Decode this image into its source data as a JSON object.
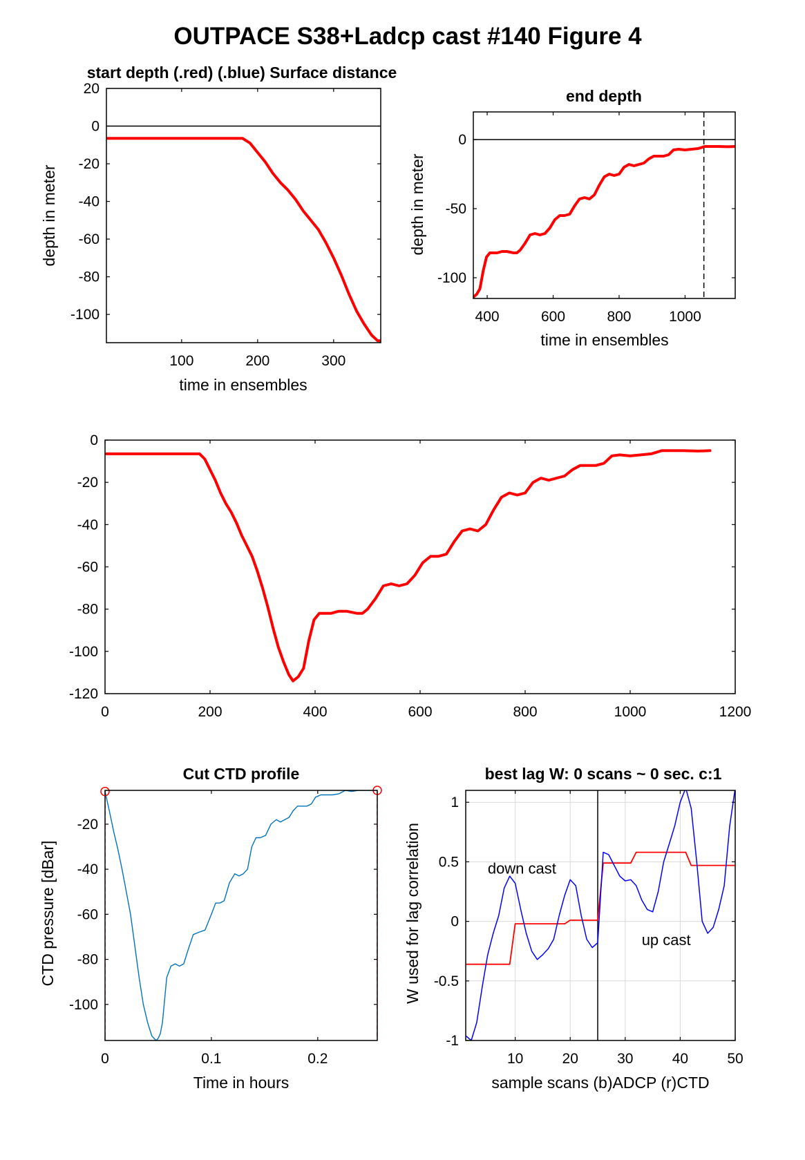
{
  "figure_title": "OUTPACE S38+Ladcp cast #140   Figure 4",
  "chart_data": [
    {
      "id": "start",
      "type": "line",
      "title": "start depth (.red) (.blue) Surface distance",
      "xlabel": "time in ensembles",
      "ylabel": "depth in meter",
      "xlim": [
        1,
        362
      ],
      "ylim": [
        -115,
        20
      ],
      "xticks": [
        100,
        200,
        300
      ],
      "yticks": [
        20,
        0,
        -20,
        -40,
        -60,
        -80,
        -100
      ],
      "grid": false,
      "hlines": [
        0
      ],
      "series": [
        {
          "color": "#ff0000",
          "x": [
            1,
            50,
            100,
            150,
            180,
            190,
            200,
            210,
            220,
            230,
            240,
            250,
            260,
            270,
            280,
            290,
            300,
            310,
            320,
            330,
            340,
            350,
            358,
            362
          ],
          "y": [
            -6.5,
            -6.5,
            -6.5,
            -6.5,
            -6.5,
            -9,
            -14,
            -19,
            -25,
            -30,
            -34,
            -39,
            -45,
            -50,
            -55,
            -62,
            -70,
            -79,
            -89,
            -98,
            -105,
            -111,
            -114,
            -114
          ]
        }
      ]
    },
    {
      "id": "end",
      "type": "line",
      "title": "end depth",
      "xlabel": "time in ensembles",
      "ylabel": "depth in meter",
      "xlim": [
        358,
        1152
      ],
      "ylim": [
        -115,
        20
      ],
      "xticks": [
        400,
        600,
        800,
        1000
      ],
      "yticks": [
        0,
        -50,
        -100
      ],
      "grid": false,
      "hlines": [
        0
      ],
      "vlines": [
        1057
      ],
      "series": [
        {
          "color": "#ff0000",
          "x": [
            358,
            368,
            378,
            388,
            398,
            408,
            418,
            430,
            445,
            460,
            480,
            490,
            500,
            515,
            530,
            545,
            560,
            575,
            590,
            605,
            620,
            635,
            650,
            665,
            680,
            695,
            710,
            725,
            740,
            755,
            770,
            785,
            800,
            815,
            830,
            845,
            860,
            875,
            890,
            905,
            920,
            935,
            950,
            965,
            980,
            1000,
            1020,
            1040,
            1060,
            1080,
            1100,
            1130,
            1152
          ],
          "y": [
            -114,
            -112,
            -108,
            -95,
            -85,
            -82,
            -82,
            -82,
            -81,
            -81,
            -82,
            -82,
            -80,
            -75,
            -69,
            -68,
            -69,
            -68,
            -64,
            -58,
            -55,
            -55,
            -54,
            -48,
            -43,
            -42,
            -43,
            -40,
            -33,
            -27,
            -25,
            -26,
            -25,
            -20,
            -18,
            -19,
            -18,
            -17,
            -14,
            -12,
            -12,
            -12,
            -11,
            -7.5,
            -7,
            -7.5,
            -7,
            -6.5,
            -5,
            -5,
            -5,
            -5.2,
            -5
          ]
        }
      ]
    },
    {
      "id": "full",
      "type": "line",
      "title": "",
      "xlabel": "",
      "ylabel": "",
      "xlim": [
        0,
        1200
      ],
      "ylim": [
        -120,
        0
      ],
      "xticks": [
        0,
        200,
        400,
        600,
        800,
        1000,
        1200
      ],
      "yticks": [
        0,
        -20,
        -40,
        -60,
        -80,
        -100,
        -120
      ],
      "grid": false,
      "series": [
        {
          "color": "#ff0000",
          "x": [
            1,
            50,
            100,
            150,
            180,
            190,
            200,
            210,
            220,
            230,
            240,
            250,
            260,
            270,
            280,
            290,
            300,
            310,
            320,
            330,
            340,
            350,
            358,
            368,
            378,
            388,
            398,
            408,
            418,
            430,
            445,
            460,
            480,
            490,
            500,
            515,
            530,
            545,
            560,
            575,
            590,
            605,
            620,
            635,
            650,
            665,
            680,
            695,
            710,
            725,
            740,
            755,
            770,
            785,
            800,
            815,
            830,
            845,
            860,
            875,
            890,
            905,
            920,
            935,
            950,
            965,
            980,
            1000,
            1020,
            1040,
            1060,
            1080,
            1100,
            1130,
            1152
          ],
          "y": [
            -6.5,
            -6.5,
            -6.5,
            -6.5,
            -6.5,
            -9,
            -14,
            -19,
            -25,
            -30,
            -34,
            -39,
            -45,
            -50,
            -55,
            -62,
            -70,
            -79,
            -89,
            -98,
            -105,
            -111,
            -114,
            -112,
            -108,
            -95,
            -85,
            -82,
            -82,
            -82,
            -81,
            -81,
            -82,
            -82,
            -80,
            -75,
            -69,
            -68,
            -69,
            -68,
            -64,
            -58,
            -55,
            -55,
            -54,
            -48,
            -43,
            -42,
            -43,
            -40,
            -33,
            -27,
            -25,
            -26,
            -25,
            -20,
            -18,
            -19,
            -18,
            -17,
            -14,
            -12,
            -12,
            -12,
            -11,
            -7.5,
            -7,
            -7.5,
            -7,
            -6.5,
            -5,
            -5,
            -5,
            -5.2,
            -5
          ]
        }
      ]
    },
    {
      "id": "ctd",
      "type": "line",
      "title": "Cut CTD profile",
      "xlabel": "Time in hours",
      "ylabel": "CTD pressure [dBar]",
      "xlim": [
        0,
        0.256
      ],
      "ylim": [
        -116,
        -5
      ],
      "xticks": [
        0,
        0.1,
        0.2
      ],
      "yticks": [
        -20,
        -40,
        -60,
        -80,
        -100
      ],
      "grid": false,
      "vlines_dashed": [
        0,
        0.256
      ],
      "endpoint_markers": [
        [
          0,
          -5.5
        ],
        [
          0.256,
          -5
        ]
      ],
      "series": [
        {
          "color": "#0072bd",
          "x": [
            0,
            0.004,
            0.008,
            0.012,
            0.016,
            0.02,
            0.024,
            0.028,
            0.032,
            0.036,
            0.04,
            0.044,
            0.048,
            0.05,
            0.052,
            0.054,
            0.056,
            0.058,
            0.062,
            0.066,
            0.07,
            0.074,
            0.078,
            0.083,
            0.088,
            0.094,
            0.1,
            0.104,
            0.108,
            0.112,
            0.117,
            0.122,
            0.126,
            0.13,
            0.134,
            0.138,
            0.142,
            0.146,
            0.151,
            0.156,
            0.161,
            0.165,
            0.169,
            0.173,
            0.177,
            0.181,
            0.186,
            0.19,
            0.194,
            0.198,
            0.203,
            0.208,
            0.214,
            0.22,
            0.226,
            0.232,
            0.238,
            0.244,
            0.25,
            0.256
          ],
          "y": [
            -5.5,
            -14,
            -23,
            -31,
            -40,
            -50,
            -60,
            -74,
            -88,
            -100,
            -108,
            -114,
            -116,
            -115,
            -113,
            -108,
            -98,
            -88,
            -83,
            -82,
            -83,
            -82,
            -76,
            -69,
            -68,
            -67,
            -60,
            -55,
            -55,
            -54,
            -46,
            -42,
            -43,
            -42,
            -40,
            -30,
            -26,
            -26,
            -25,
            -20,
            -18,
            -19,
            -18,
            -17,
            -14,
            -12,
            -12,
            -12,
            -11,
            -8,
            -7,
            -7,
            -7,
            -6.5,
            -5,
            -5.5,
            -5,
            -5,
            -5,
            -5
          ]
        }
      ]
    },
    {
      "id": "lag",
      "type": "line",
      "title": "best lag W: 0 scans ~ 0 sec.  c:1",
      "xlabel": "sample scans (b)ADCP (r)CTD",
      "ylabel": "W used for lag correlation",
      "xlim": [
        1,
        50
      ],
      "ylim": [
        -1,
        1.1
      ],
      "xticks": [
        10,
        20,
        30,
        40,
        50
      ],
      "yticks": [
        1,
        0.5,
        0,
        -0.5,
        -1
      ],
      "grid": true,
      "vlines": [
        25
      ],
      "annotations": [
        {
          "text": "down cast",
          "x": 5,
          "y": 0.4
        },
        {
          "text": "up cast",
          "x": 33,
          "y": -0.2
        }
      ],
      "series": [
        {
          "color": "#ff0000",
          "x": [
            1,
            9,
            10,
            19,
            20,
            25,
            26,
            31,
            32,
            41,
            42,
            50
          ],
          "y": [
            -0.36,
            -0.36,
            -0.02,
            -0.02,
            0.01,
            0.01,
            0.49,
            0.49,
            0.58,
            0.58,
            0.47,
            0.47
          ]
        },
        {
          "color": "#0000ff",
          "x": [
            1,
            2,
            3,
            4,
            5,
            6,
            7,
            8,
            9,
            10,
            11,
            12,
            13,
            14,
            15,
            16,
            17,
            18,
            19,
            20,
            21,
            22,
            23,
            24,
            25,
            26,
            27,
            28,
            29,
            30,
            31,
            32,
            33,
            34,
            35,
            36,
            37,
            38,
            39,
            40,
            41,
            42,
            43,
            44,
            45,
            46,
            47,
            48,
            49,
            50
          ],
          "y": [
            -0.96,
            -1.0,
            -0.85,
            -0.55,
            -0.28,
            -0.1,
            0.05,
            0.28,
            0.38,
            0.32,
            0.1,
            -0.1,
            -0.25,
            -0.32,
            -0.28,
            -0.23,
            -0.15,
            0.05,
            0.22,
            0.35,
            0.3,
            0.05,
            -0.15,
            -0.22,
            -0.18,
            0.58,
            0.56,
            0.47,
            0.38,
            0.34,
            0.35,
            0.3,
            0.18,
            0.1,
            0.08,
            0.25,
            0.5,
            0.65,
            0.8,
            1.0,
            1.12,
            0.95,
            0.5,
            0.0,
            -0.1,
            -0.05,
            0.1,
            0.3,
            0.8,
            1.12
          ]
        }
      ]
    }
  ]
}
